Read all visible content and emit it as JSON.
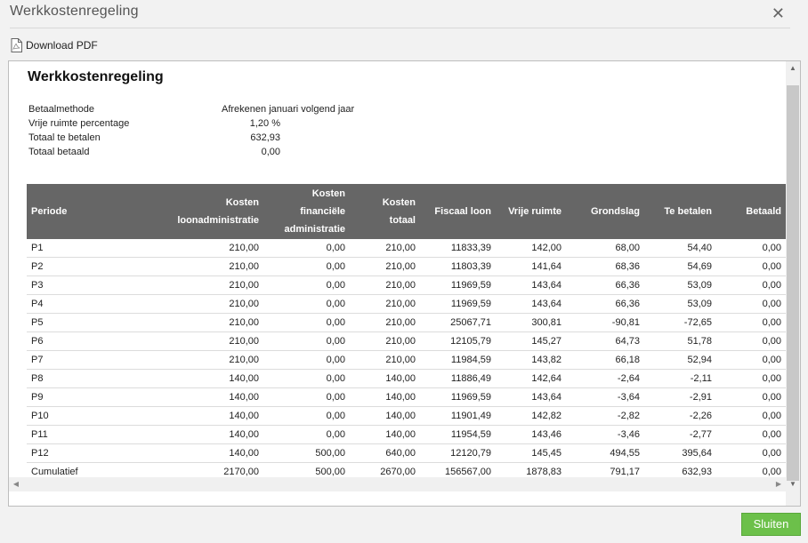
{
  "dialog": {
    "title": "Werkkostenregeling",
    "download_label": "Download PDF",
    "close_label": "Sluiten"
  },
  "report": {
    "title": "Werkkostenregeling",
    "info": [
      {
        "label": "Betaalmethode",
        "value": "Afrekenen januari volgend jaar"
      },
      {
        "label": "Vrije ruimte percentage",
        "value": "1,20 %"
      },
      {
        "label": "Totaal te betalen",
        "value": "632,93"
      },
      {
        "label": "Totaal betaald",
        "value": "0,00"
      }
    ]
  },
  "table": {
    "headers": [
      [
        "Periode"
      ],
      [
        "Kosten",
        "loonadministratie"
      ],
      [
        "Kosten",
        "financiële",
        "administratie"
      ],
      [
        "Kosten",
        "totaal"
      ],
      [
        "Fiscaal loon"
      ],
      [
        "Vrije ruimte"
      ],
      [
        "Grondslag"
      ],
      [
        "Te betalen"
      ],
      [
        "Betaald"
      ]
    ],
    "rows": [
      [
        "P1",
        "210,00",
        "0,00",
        "210,00",
        "11833,39",
        "142,00",
        "68,00",
        "54,40",
        "0,00"
      ],
      [
        "P2",
        "210,00",
        "0,00",
        "210,00",
        "11803,39",
        "141,64",
        "68,36",
        "54,69",
        "0,00"
      ],
      [
        "P3",
        "210,00",
        "0,00",
        "210,00",
        "11969,59",
        "143,64",
        "66,36",
        "53,09",
        "0,00"
      ],
      [
        "P4",
        "210,00",
        "0,00",
        "210,00",
        "11969,59",
        "143,64",
        "66,36",
        "53,09",
        "0,00"
      ],
      [
        "P5",
        "210,00",
        "0,00",
        "210,00",
        "25067,71",
        "300,81",
        "-90,81",
        "-72,65",
        "0,00"
      ],
      [
        "P6",
        "210,00",
        "0,00",
        "210,00",
        "12105,79",
        "145,27",
        "64,73",
        "51,78",
        "0,00"
      ],
      [
        "P7",
        "210,00",
        "0,00",
        "210,00",
        "11984,59",
        "143,82",
        "66,18",
        "52,94",
        "0,00"
      ],
      [
        "P8",
        "140,00",
        "0,00",
        "140,00",
        "11886,49",
        "142,64",
        "-2,64",
        "-2,11",
        "0,00"
      ],
      [
        "P9",
        "140,00",
        "0,00",
        "140,00",
        "11969,59",
        "143,64",
        "-3,64",
        "-2,91",
        "0,00"
      ],
      [
        "P10",
        "140,00",
        "0,00",
        "140,00",
        "11901,49",
        "142,82",
        "-2,82",
        "-2,26",
        "0,00"
      ],
      [
        "P11",
        "140,00",
        "0,00",
        "140,00",
        "11954,59",
        "143,46",
        "-3,46",
        "-2,77",
        "0,00"
      ],
      [
        "P12",
        "140,00",
        "500,00",
        "640,00",
        "12120,79",
        "145,45",
        "494,55",
        "395,64",
        "0,00"
      ],
      [
        "Cumulatief",
        "2170,00",
        "500,00",
        "2670,00",
        "156567,00",
        "1878,83",
        "791,17",
        "632,93",
        "0,00"
      ]
    ]
  }
}
